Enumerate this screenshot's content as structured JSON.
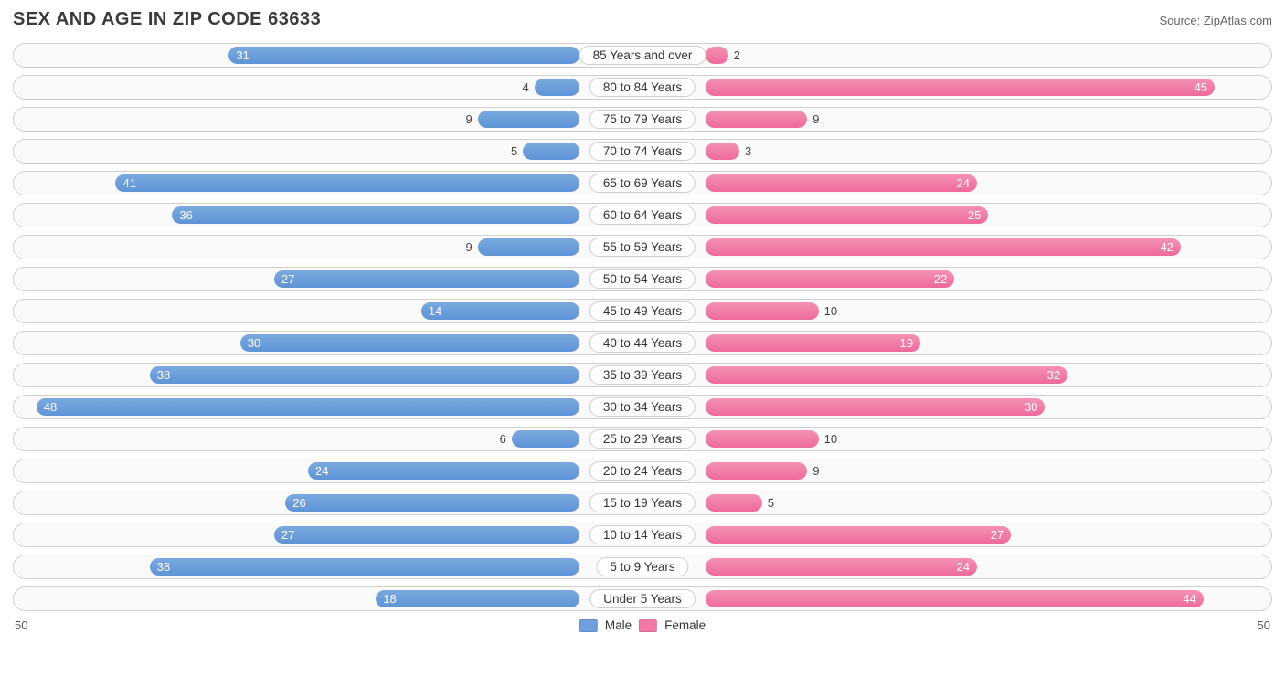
{
  "title": "SEX AND AGE IN ZIP CODE 63633",
  "source": "Source: ZipAtlas.com",
  "colors": {
    "male_gradient_from": "#7aa9e0",
    "male_gradient_to": "#5f94d6",
    "female_gradient_from": "#f591b4",
    "female_gradient_to": "#ed6a9b",
    "male_swatch": "#6f9fdd",
    "female_swatch": "#f07aa5",
    "row_border": "#cfcfcf",
    "row_bg": "#fafafa",
    "text": "#333333",
    "title_color": "#3a3a3a"
  },
  "axis": {
    "max": 50,
    "left_label": "50",
    "right_label": "50"
  },
  "legend": {
    "male": "Male",
    "female": "Female"
  },
  "label_offset_percent": 10,
  "inside_threshold": 12,
  "rows": [
    {
      "age": "85 Years and over",
      "male": 31,
      "female": 2
    },
    {
      "age": "80 to 84 Years",
      "male": 4,
      "female": 45
    },
    {
      "age": "75 to 79 Years",
      "male": 9,
      "female": 9
    },
    {
      "age": "70 to 74 Years",
      "male": 5,
      "female": 3
    },
    {
      "age": "65 to 69 Years",
      "male": 41,
      "female": 24
    },
    {
      "age": "60 to 64 Years",
      "male": 36,
      "female": 25
    },
    {
      "age": "55 to 59 Years",
      "male": 9,
      "female": 42
    },
    {
      "age": "50 to 54 Years",
      "male": 27,
      "female": 22
    },
    {
      "age": "45 to 49 Years",
      "male": 14,
      "female": 10
    },
    {
      "age": "40 to 44 Years",
      "male": 30,
      "female": 19
    },
    {
      "age": "35 to 39 Years",
      "male": 38,
      "female": 32
    },
    {
      "age": "30 to 34 Years",
      "male": 48,
      "female": 30
    },
    {
      "age": "25 to 29 Years",
      "male": 6,
      "female": 10
    },
    {
      "age": "20 to 24 Years",
      "male": 24,
      "female": 9
    },
    {
      "age": "15 to 19 Years",
      "male": 26,
      "female": 5
    },
    {
      "age": "10 to 14 Years",
      "male": 27,
      "female": 27
    },
    {
      "age": "5 to 9 Years",
      "male": 38,
      "female": 24
    },
    {
      "age": "Under 5 Years",
      "male": 18,
      "female": 44
    }
  ]
}
